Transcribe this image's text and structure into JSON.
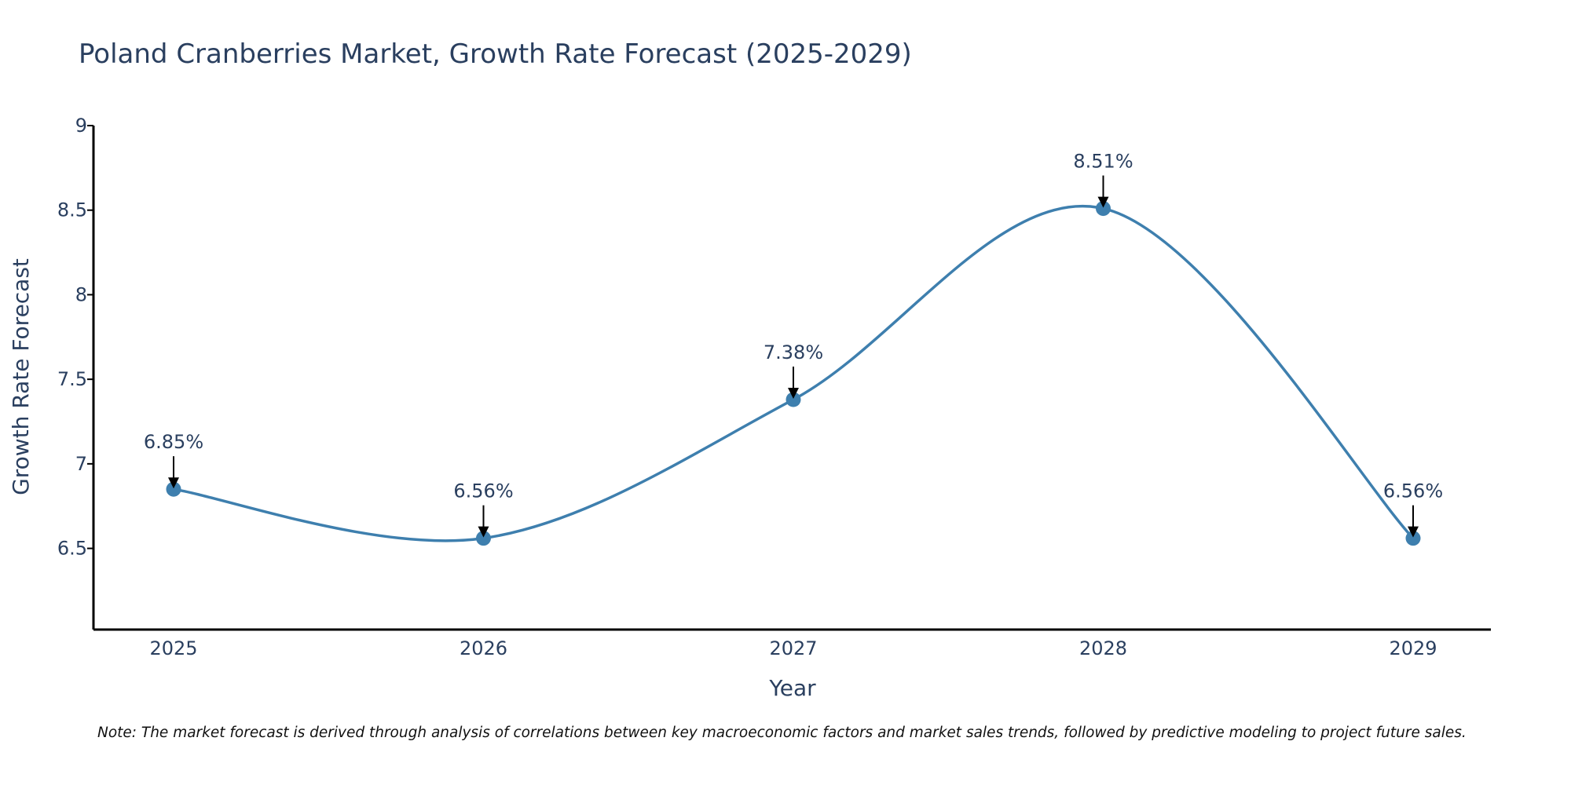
{
  "chart_data": {
    "type": "line",
    "title": "Poland Cranberries Market, Growth Rate Forecast (2025-2029)",
    "xlabel": "Year",
    "ylabel": "Growth Rate Forecast",
    "categories": [
      "2025",
      "2026",
      "2027",
      "2028",
      "2029"
    ],
    "series": [
      {
        "name": "Growth Rate Forecast",
        "values": [
          6.85,
          6.56,
          7.38,
          8.51,
          6.56
        ],
        "labels": [
          "6.85%",
          "6.56%",
          "7.38%",
          "8.51%",
          "6.56%"
        ]
      }
    ],
    "ylim": [
      6.02,
      9
    ],
    "yticks": [
      6.5,
      7,
      7.5,
      8,
      8.5,
      9
    ],
    "ytick_labels": [
      "6.5",
      "7",
      "7.5",
      "8",
      "8.5",
      "9"
    ],
    "grid": false,
    "line_shape": "spline",
    "colors": {
      "line": "#3e7fae",
      "marker": "#3e7fae",
      "axis": "#000000",
      "text": "#2a3f5f",
      "arrow": "#000000"
    },
    "note": "Note: The market forecast is derived through analysis of correlations between key macroeconomic factors and market sales trends, followed by predictive modeling to project future sales."
  }
}
